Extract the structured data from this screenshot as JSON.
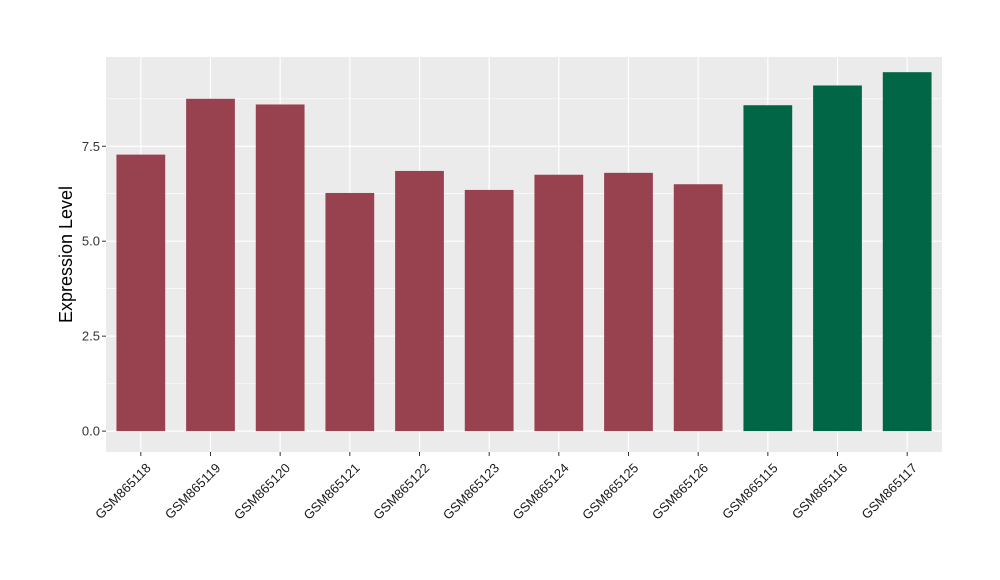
{
  "chart_data": {
    "type": "bar",
    "title": "",
    "xlabel": "",
    "ylabel": "Expression Level",
    "ylim": [
      -0.55,
      9.85
    ],
    "yticks": [
      0.0,
      2.5,
      5.0,
      7.5
    ],
    "ytick_labels": [
      "0.0",
      "2.5",
      "5.0",
      "7.5"
    ],
    "grid": true,
    "legend": "none",
    "background_color": "#ebebeb",
    "gridline_color": "#ffffff",
    "categories": [
      "GSM865118",
      "GSM865119",
      "GSM865120",
      "GSM865121",
      "GSM865122",
      "GSM865123",
      "GSM865124",
      "GSM865125",
      "GSM865126",
      "GSM865115",
      "GSM865116",
      "GSM865117"
    ],
    "values": [
      7.28,
      8.75,
      8.6,
      6.27,
      6.85,
      6.35,
      6.75,
      6.8,
      6.5,
      8.58,
      9.1,
      9.45
    ],
    "bar_colors": [
      "#98424f",
      "#98424f",
      "#98424f",
      "#98424f",
      "#98424f",
      "#98424f",
      "#98424f",
      "#98424f",
      "#98424f",
      "#006646",
      "#006646",
      "#006646"
    ]
  }
}
